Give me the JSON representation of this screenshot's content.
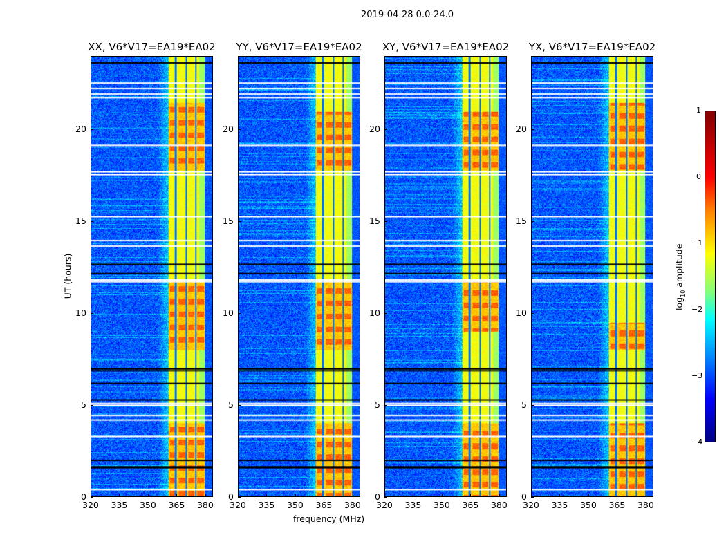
{
  "chart_data": {
    "type": "heatmap",
    "title": "2019-04-28 0.0-24.0",
    "xlabel": "frequency (MHz)",
    "ylabel": "UT (hours)",
    "xlim": [
      320,
      384
    ],
    "ylim": [
      0,
      24
    ],
    "xticks": [
      "320",
      "335",
      "350",
      "365",
      "380"
    ],
    "xtick_values": [
      320,
      335,
      350,
      365,
      380
    ],
    "yticks": [
      "0",
      "5",
      "10",
      "15",
      "20"
    ],
    "ytick_values": [
      0,
      5,
      10,
      15,
      20
    ],
    "panels": [
      {
        "title": "XX, V6*V17=EA19*EA02",
        "band_mhz": [
          360.5,
          380
        ],
        "hot_hours": [
          [
            0,
            4
          ],
          [
            8,
            11.7
          ],
          [
            17.8,
            21.5
          ]
        ]
      },
      {
        "title": "YY, V6*V17=EA19*EA02",
        "band_mhz": [
          360.5,
          380
        ],
        "hot_hours": [
          [
            0,
            4
          ],
          [
            8,
            11.7
          ],
          [
            17.8,
            21
          ]
        ]
      },
      {
        "title": "XY, V6*V17=EA19*EA02",
        "band_mhz": [
          360.5,
          380
        ],
        "hot_hours": [
          [
            0,
            4
          ],
          [
            9,
            11.7
          ],
          [
            17.8,
            21
          ]
        ]
      },
      {
        "title": "YX, V6*V17=EA19*EA02",
        "band_mhz": [
          360.5,
          380
        ],
        "hot_hours": [
          [
            0,
            4
          ],
          [
            8,
            9.5
          ],
          [
            17.8,
            21.5
          ]
        ]
      }
    ],
    "band_dark_lines_mhz": [
      364.5,
      370,
      375
    ],
    "flagged_white_hours": [
      0.4,
      3.3,
      4.2,
      4.45,
      5.0,
      5.1,
      11.75,
      11.85,
      17.6,
      17.75,
      19.2,
      21.8,
      22.0,
      22.3,
      22.6,
      15.3,
      14.0,
      13.7
    ],
    "flagged_black_hours": [
      1.6,
      1.65,
      2.0,
      5.3,
      6.2,
      6.9,
      7.0,
      12.2,
      12.7,
      23.7
    ],
    "colorbar": {
      "label_main": "log",
      "label_sub": "10",
      "label_tail": " amplitude",
      "range": [
        -4,
        1
      ],
      "ticks": [
        "1",
        "0",
        "−1",
        "−2",
        "−3",
        "−4"
      ],
      "tick_values": [
        1,
        0,
        -1,
        -2,
        -3,
        -4
      ],
      "colormap": "jet"
    }
  }
}
